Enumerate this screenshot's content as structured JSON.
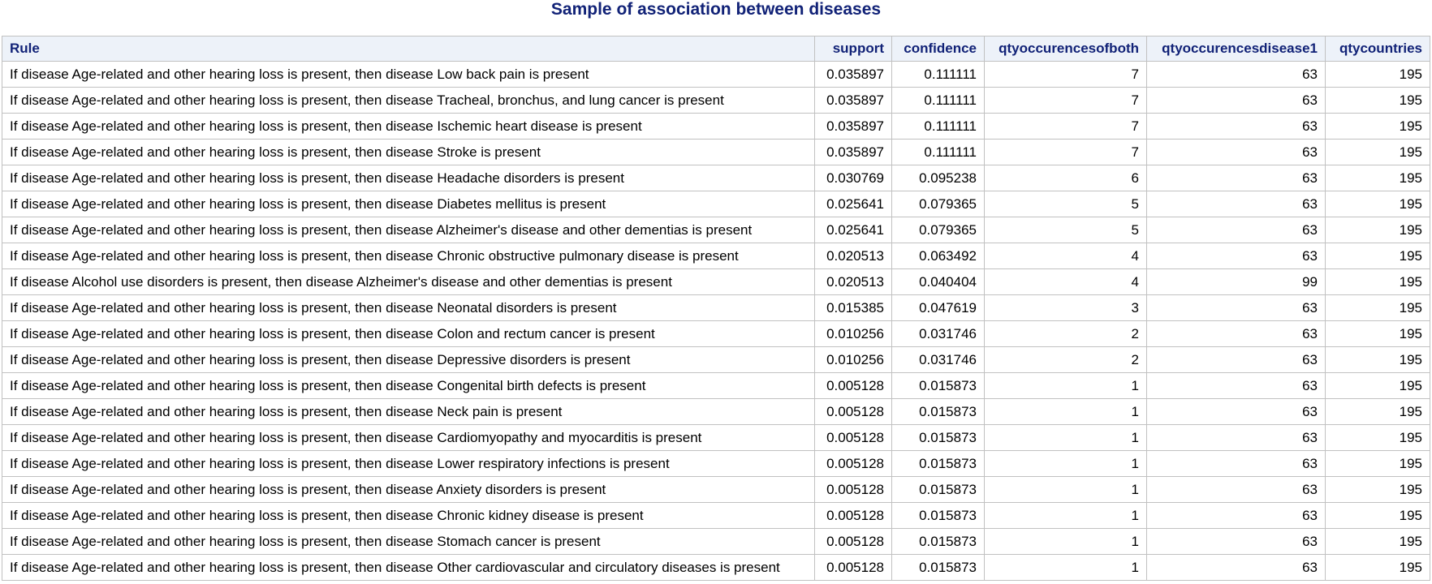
{
  "title": "Sample of association between diseases",
  "columns": [
    "Rule",
    "support",
    "confidence",
    "qtyoccurencesofboth",
    "qtyoccurencesdisease1",
    "qtycountries"
  ],
  "rows": [
    [
      "If disease Age-related and other hearing loss is present, then disease Low back pain is present",
      "0.035897",
      "0.111111",
      "7",
      "63",
      "195"
    ],
    [
      "If disease Age-related and other hearing loss is present, then disease Tracheal, bronchus, and lung cancer is present",
      "0.035897",
      "0.111111",
      "7",
      "63",
      "195"
    ],
    [
      "If disease Age-related and other hearing loss is present, then disease Ischemic heart disease is present",
      "0.035897",
      "0.111111",
      "7",
      "63",
      "195"
    ],
    [
      "If disease Age-related and other hearing loss is present, then disease Stroke is present",
      "0.035897",
      "0.111111",
      "7",
      "63",
      "195"
    ],
    [
      "If disease Age-related and other hearing loss is present, then disease Headache disorders is present",
      "0.030769",
      "0.095238",
      "6",
      "63",
      "195"
    ],
    [
      "If disease Age-related and other hearing loss is present, then disease Diabetes mellitus is present",
      "0.025641",
      "0.079365",
      "5",
      "63",
      "195"
    ],
    [
      "If disease Age-related and other hearing loss is present, then disease Alzheimer's disease and other dementias is present",
      "0.025641",
      "0.079365",
      "5",
      "63",
      "195"
    ],
    [
      "If disease Age-related and other hearing loss is present, then disease Chronic obstructive pulmonary disease is present",
      "0.020513",
      "0.063492",
      "4",
      "63",
      "195"
    ],
    [
      "If disease Alcohol use disorders is present, then disease Alzheimer's disease and other dementias is present",
      "0.020513",
      "0.040404",
      "4",
      "99",
      "195"
    ],
    [
      "If disease Age-related and other hearing loss is present, then disease Neonatal disorders is present",
      "0.015385",
      "0.047619",
      "3",
      "63",
      "195"
    ],
    [
      "If disease Age-related and other hearing loss is present, then disease Colon and rectum cancer is present",
      "0.010256",
      "0.031746",
      "2",
      "63",
      "195"
    ],
    [
      "If disease Age-related and other hearing loss is present, then disease Depressive disorders is present",
      "0.010256",
      "0.031746",
      "2",
      "63",
      "195"
    ],
    [
      "If disease Age-related and other hearing loss is present, then disease Congenital birth defects is present",
      "0.005128",
      "0.015873",
      "1",
      "63",
      "195"
    ],
    [
      "If disease Age-related and other hearing loss is present, then disease Neck pain is present",
      "0.005128",
      "0.015873",
      "1",
      "63",
      "195"
    ],
    [
      "If disease Age-related and other hearing loss is present, then disease Cardiomyopathy and myocarditis is present",
      "0.005128",
      "0.015873",
      "1",
      "63",
      "195"
    ],
    [
      "If disease Age-related and other hearing loss is present, then disease Lower respiratory infections is present",
      "0.005128",
      "0.015873",
      "1",
      "63",
      "195"
    ],
    [
      "If disease Age-related and other hearing loss is present, then disease Anxiety disorders is present",
      "0.005128",
      "0.015873",
      "1",
      "63",
      "195"
    ],
    [
      "If disease Age-related and other hearing loss is present, then disease Chronic kidney disease is present",
      "0.005128",
      "0.015873",
      "1",
      "63",
      "195"
    ],
    [
      "If disease Age-related and other hearing loss is present, then disease Stomach cancer is present",
      "0.005128",
      "0.015873",
      "1",
      "63",
      "195"
    ],
    [
      "If disease Age-related and other hearing loss is present, then disease Other cardiovascular and circulatory diseases is present",
      "0.005128",
      "0.015873",
      "1",
      "63",
      "195"
    ]
  ],
  "colors": {
    "title": "#112277",
    "header_bg": "#edf2f9",
    "header_text": "#112277",
    "border": "#c1c1c1"
  }
}
